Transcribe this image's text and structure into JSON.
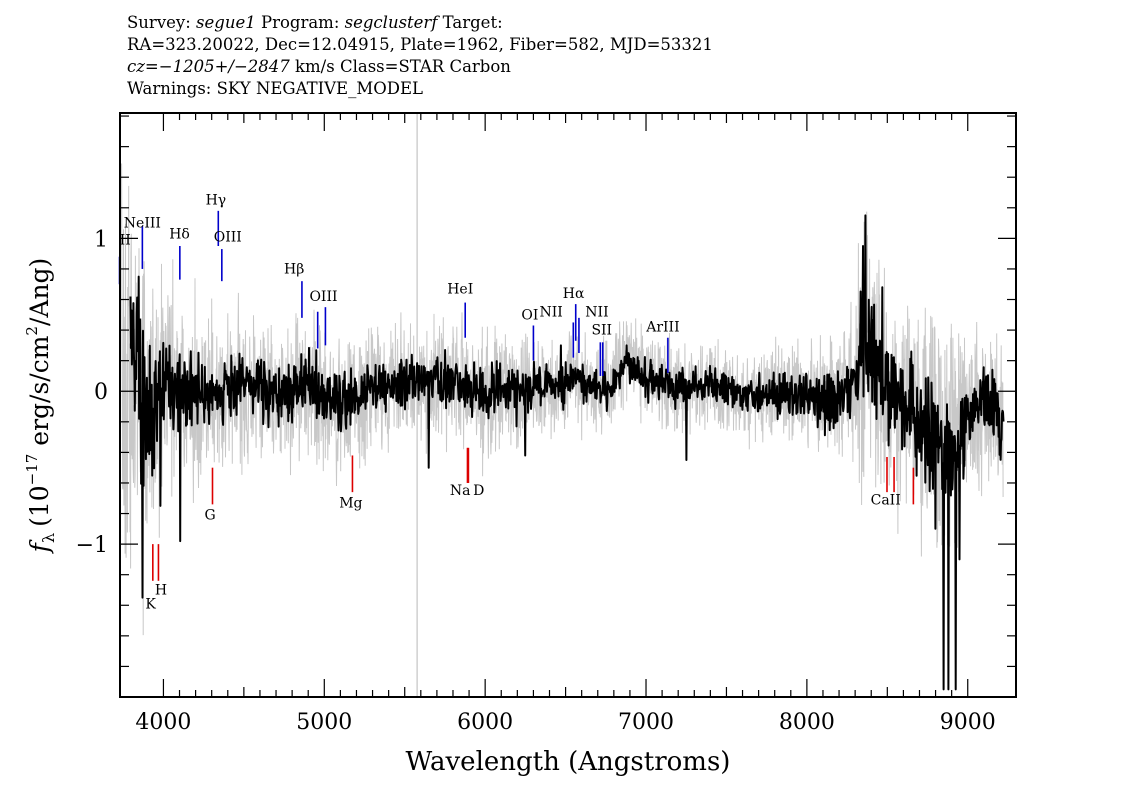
{
  "header": {
    "line1": {
      "survey_label": "Survey: ",
      "survey": "segue1",
      "program_label": " Program: ",
      "program": "segclusterf",
      "target_label": " Target:"
    },
    "line2": "RA=323.20022, Dec=12.04915, Plate=1962, Fiber=582, MJD=53321",
    "line3": {
      "cz_label": "cz=",
      "cz_value": "−1205+/−2847",
      "rest": " km/s Class=STAR Carbon"
    },
    "line4": "Warnings: SKY NEGATIVE_MODEL"
  },
  "chart_data": {
    "type": "line",
    "title": "",
    "xlabel": "Wavelength (Angstroms)",
    "ylabel": "fλ (10⁻¹⁷ erg/s/cm²/Ang)",
    "ylabel_parts": {
      "f": "f",
      "lambda": "λ",
      "units_a": "(10",
      "exp": "−17",
      "units_b": " erg/s/cm",
      "sq": "2",
      "units_c": "/Ang)"
    },
    "xlim": [
      3730,
      9300
    ],
    "ylim": [
      -2.0,
      1.82
    ],
    "xticks": [
      4000,
      5000,
      6000,
      7000,
      8000,
      9000
    ],
    "yticks": [
      -1,
      0,
      1
    ],
    "ytick_labels": [
      "−1",
      "0",
      "1"
    ],
    "grid": false,
    "colors": {
      "flux": "#000000",
      "error": "#c8c8c8",
      "emission": "#0000cc",
      "absorption": "#dd0000"
    },
    "series": [
      {
        "role": "smoothed flux",
        "x": [
          3800,
          3850,
          3900,
          3950,
          4000,
          4050,
          4100,
          4150,
          4200,
          4300,
          4400,
          4500,
          4600,
          4700,
          4800,
          4900,
          5000,
          5100,
          5200,
          5300,
          5400,
          5500,
          5600,
          5700,
          5800,
          5900,
          6000,
          6100,
          6200,
          6300,
          6400,
          6500,
          6550,
          6600,
          6700,
          6800,
          6880,
          6950,
          7000,
          7100,
          7200,
          7300,
          7400,
          7500,
          7600,
          7700,
          7800,
          7900,
          8000,
          8100,
          8200,
          8300,
          8350,
          8400,
          8450,
          8500,
          8550,
          8600,
          8650,
          8700,
          8750,
          8800,
          8850,
          8900,
          8950,
          9000,
          9050,
          9100,
          9150,
          9200,
          9220
        ],
        "y": [
          0.2,
          0.05,
          -0.15,
          -0.1,
          0.05,
          0.1,
          0.0,
          -0.05,
          0.0,
          -0.05,
          0.0,
          0.05,
          0.02,
          0.0,
          0.02,
          0.05,
          -0.05,
          -0.08,
          -0.05,
          0.0,
          0.03,
          0.05,
          0.05,
          0.08,
          0.07,
          0.02,
          -0.02,
          0.02,
          0.0,
          0.02,
          0.05,
          0.02,
          0.1,
          0.05,
          0.03,
          0.05,
          0.2,
          0.12,
          0.08,
          0.05,
          0.03,
          0.03,
          0.05,
          0.0,
          -0.02,
          0.0,
          -0.02,
          -0.03,
          -0.03,
          -0.05,
          -0.05,
          0.05,
          0.38,
          0.25,
          0.08,
          0.0,
          -0.05,
          -0.1,
          -0.15,
          -0.2,
          -0.25,
          -0.3,
          -0.4,
          -0.5,
          -0.35,
          -0.2,
          -0.1,
          -0.08,
          -0.1,
          -0.15,
          -0.22
        ]
      },
      {
        "role": "error envelope half-width",
        "x": [
          3730,
          3850,
          4000,
          4200,
          4500,
          5000,
          5500,
          6000,
          6500,
          7000,
          7500,
          8000,
          8300,
          8350,
          8400,
          8600,
          8800,
          8900,
          9000,
          9100,
          9220
        ],
        "y": [
          0.9,
          0.75,
          0.45,
          0.38,
          0.3,
          0.3,
          0.25,
          0.25,
          0.2,
          0.18,
          0.18,
          0.22,
          0.35,
          0.9,
          0.55,
          0.45,
          0.55,
          0.6,
          0.4,
          0.35,
          0.35
        ]
      }
    ],
    "extremes": [
      {
        "x": 3795,
        "y": 0.62
      },
      {
        "x": 3845,
        "y": 0.75
      },
      {
        "x": 3870,
        "y": -1.35
      },
      {
        "x": 3980,
        "y": -0.75
      },
      {
        "x": 4105,
        "y": -0.98
      },
      {
        "x": 5650,
        "y": -0.5
      },
      {
        "x": 6250,
        "y": -0.42
      },
      {
        "x": 6470,
        "y": 0.3
      },
      {
        "x": 6880,
        "y": 0.3
      },
      {
        "x": 7250,
        "y": -0.45
      },
      {
        "x": 8350,
        "y": 0.95
      },
      {
        "x": 8365,
        "y": 1.15
      },
      {
        "x": 8470,
        "y": 0.68
      },
      {
        "x": 8800,
        "y": -0.9
      },
      {
        "x": 8850,
        "y": -1.95
      },
      {
        "x": 8880,
        "y": -1.95
      },
      {
        "x": 8925,
        "y": -1.95
      },
      {
        "x": 8950,
        "y": -1.1
      }
    ],
    "vertical_marker_x": 5577,
    "annotations": {
      "emission": [
        {
          "label": "II",
          "x": 3727,
          "y_top": 0.88,
          "y_bot": 0.7,
          "lx": 3728,
          "ly": 0.96,
          "anchor": "start",
          "size": 14
        },
        {
          "label": "NeIII",
          "x": 3869,
          "y_top": 1.08,
          "y_bot": 0.8,
          "lx": 3869,
          "ly": 1.07,
          "anchor": "middle",
          "size": 14
        },
        {
          "label": "Hδ",
          "x": 4102,
          "y_top": 0.95,
          "y_bot": 0.73,
          "lx": 4100,
          "ly": 1.0,
          "anchor": "middle",
          "size": 14
        },
        {
          "label": "Hγ",
          "x": 4341,
          "y_top": 1.18,
          "y_bot": 0.95,
          "lx": 4326,
          "ly": 1.22,
          "anchor": "middle",
          "size": 14
        },
        {
          "label": "OIII",
          "x": 4363,
          "y_top": 0.93,
          "y_bot": 0.72,
          "lx": 4400,
          "ly": 0.98,
          "anchor": "middle",
          "size": 14
        },
        {
          "label": "Hβ",
          "x": 4861,
          "y_top": 0.72,
          "y_bot": 0.48,
          "lx": 4813,
          "ly": 0.77,
          "anchor": "middle",
          "size": 14
        },
        {
          "label": "OIII",
          "x": 4959,
          "y_top": 0.52,
          "y_bot": 0.28,
          "lx": 4995,
          "ly": 0.59,
          "anchor": "middle",
          "size": 14
        },
        {
          "label": "OIII",
          "x": 5007,
          "y_top": 0.55,
          "y_bot": 0.3,
          "lx": null,
          "ly": null,
          "anchor": "middle",
          "size": 14
        },
        {
          "label": "HeI",
          "x": 5876,
          "y_top": 0.58,
          "y_bot": 0.35,
          "lx": 5845,
          "ly": 0.64,
          "anchor": "middle",
          "size": 14
        },
        {
          "label": "OI",
          "x": 6300,
          "y_top": 0.43,
          "y_bot": 0.2,
          "lx": 6278,
          "ly": 0.47,
          "anchor": "middle",
          "size": 14
        },
        {
          "label": "NII",
          "x": 6548,
          "y_top": 0.45,
          "y_bot": 0.22,
          "lx": 6410,
          "ly": 0.49,
          "anchor": "middle",
          "size": 14
        },
        {
          "label": "Hα",
          "x": 6563,
          "y_top": 0.57,
          "y_bot": 0.33,
          "lx": 6550,
          "ly": 0.61,
          "anchor": "middle",
          "size": 14
        },
        {
          "label": "NII",
          "x": 6583,
          "y_top": 0.48,
          "y_bot": 0.25,
          "lx": 6695,
          "ly": 0.49,
          "anchor": "middle",
          "size": 14
        },
        {
          "label": "SII",
          "x": 6716,
          "y_top": 0.32,
          "y_bot": 0.1,
          "lx": 6725,
          "ly": 0.37,
          "anchor": "middle",
          "size": 14
        },
        {
          "label": "SII",
          "x": 6731,
          "y_top": 0.32,
          "y_bot": 0.1,
          "lx": null,
          "ly": null,
          "anchor": "middle",
          "size": 14
        },
        {
          "label": "ArIII",
          "x": 7136,
          "y_top": 0.35,
          "y_bot": 0.12,
          "lx": 7105,
          "ly": 0.39,
          "anchor": "middle",
          "size": 14
        }
      ],
      "absorption": [
        {
          "label": "K",
          "x": 3934,
          "y_top": -1.0,
          "y_bot": -1.24,
          "lx": 3920,
          "ly": -1.42,
          "anchor": "middle",
          "size": 14
        },
        {
          "label": "H",
          "x": 3969,
          "y_top": -1.0,
          "y_bot": -1.24,
          "lx": 3985,
          "ly": -1.33,
          "anchor": "middle",
          "size": 14
        },
        {
          "label": "G",
          "x": 4305,
          "y_top": -0.5,
          "y_bot": -0.74,
          "lx": 4290,
          "ly": -0.84,
          "anchor": "middle",
          "size": 14
        },
        {
          "label": "Mg",
          "x": 5175,
          "y_top": -0.42,
          "y_bot": -0.66,
          "lx": 5165,
          "ly": -0.76,
          "anchor": "middle",
          "size": 14
        },
        {
          "label": "Na",
          "x": 5890,
          "y_top": -0.37,
          "y_bot": -0.6,
          "lx": 5845,
          "ly": -0.68,
          "anchor": "middle",
          "size": 14
        },
        {
          "label": "D",
          "x": 5896,
          "y_top": -0.37,
          "y_bot": -0.6,
          "lx": 5960,
          "ly": -0.68,
          "anchor": "middle",
          "size": 14
        },
        {
          "label": "CaII",
          "x": 8498,
          "y_top": -0.43,
          "y_bot": -0.66,
          "lx": 8490,
          "ly": -0.74,
          "anchor": "middle",
          "size": 14
        },
        {
          "label": "CaII",
          "x": 8542,
          "y_top": -0.43,
          "y_bot": -0.66,
          "lx": null,
          "ly": null,
          "anchor": "middle",
          "size": 14
        },
        {
          "label": "CaII",
          "x": 8662,
          "y_top": -0.5,
          "y_bot": -0.74,
          "lx": null,
          "ly": null,
          "anchor": "middle",
          "size": 14
        }
      ]
    }
  }
}
